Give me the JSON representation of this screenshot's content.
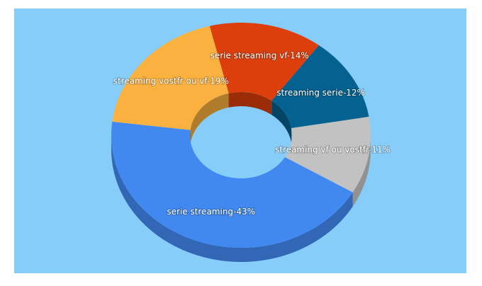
{
  "chart_data": {
    "type": "donut3d",
    "values": [
      14,
      12,
      11,
      43,
      19
    ],
    "value_labels": [
      "serie streaming vf-14%",
      "streaming serie-12%",
      "streaming vf ou vostfr-11%",
      "serie streaming-43%",
      "streaming vostfr ou vf-19%"
    ],
    "colors": [
      "#dc3f0c",
      "#05618f",
      "#c2c2c2",
      "#4189f0",
      "#fbb13f"
    ],
    "background": "#87cdf9"
  }
}
